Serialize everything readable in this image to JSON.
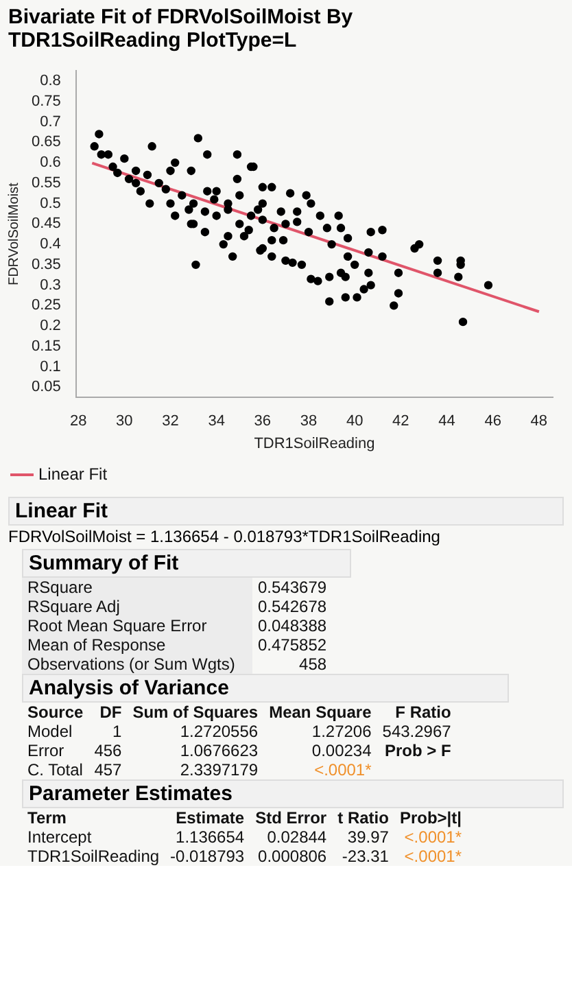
{
  "chart_data": {
    "type": "scatter",
    "title": "Bivariate Fit of FDRVolSoilMoist By TDR1SoilReading PlotType=L",
    "xlabel": "TDR1SoilReading",
    "ylabel": "FDRVolSoilMoist",
    "legend": "bottom left",
    "xlim": [
      27.9,
      48.6
    ],
    "xticks": [
      28,
      30,
      32,
      34,
      36,
      38,
      40,
      42,
      44,
      46,
      48
    ],
    "ylim": [
      0.025,
      0.825
    ],
    "yticks": [
      0.05,
      0.1,
      0.15,
      0.2,
      0.25,
      0.3,
      0.35,
      0.4,
      0.45,
      0.5,
      0.55,
      0.6,
      0.65,
      0.7,
      0.75,
      0.8
    ],
    "series": [
      {
        "marker": "circle",
        "color": "#000000",
        "x": [
          28.9,
          28.7,
          29.0,
          29.3,
          30.0,
          29.5,
          29.7,
          30.2,
          31.2,
          30.5,
          31.0,
          30.7,
          31.1,
          33.1,
          33.2,
          33.6,
          34.9,
          35.5,
          32.0,
          32.2,
          32.9,
          31.8,
          32.2,
          32.9,
          34.3,
          33.9,
          34.9,
          36.0,
          35.8,
          35.4,
          35.9,
          36.4,
          37.2,
          37.3,
          36.4,
          34.7,
          33.6,
          34.5,
          32.8,
          35.6,
          36.4,
          37.9,
          38.1,
          37.5,
          36.9,
          36.0,
          37.0,
          37.7,
          38.1,
          38.4,
          38.9,
          38.9,
          39.3,
          39.4,
          38.8,
          39.7,
          39.0,
          39.7,
          40.0,
          39.4,
          39.6,
          39.6,
          40.1,
          40.4,
          40.7,
          40.6,
          40.6,
          40.7,
          41.2,
          41.2,
          41.9,
          41.9,
          41.7,
          42.6,
          42.8,
          43.6,
          43.6,
          44.6,
          44.6,
          44.5,
          44.7,
          45.8,
          33.0,
          33.5,
          34.0,
          34.5,
          35.0,
          35.5,
          34.0,
          33.0,
          35.0,
          36.0,
          36.5,
          32.5,
          31.5,
          30.5,
          32.0,
          33.5,
          34.5,
          35.2,
          36.8,
          37.5,
          38.5,
          38.0,
          36.0,
          37.0
        ],
        "values": [
          0.67,
          0.64,
          0.62,
          0.62,
          0.61,
          0.59,
          0.575,
          0.56,
          0.64,
          0.58,
          0.57,
          0.53,
          0.5,
          0.35,
          0.66,
          0.62,
          0.62,
          0.59,
          0.58,
          0.6,
          0.58,
          0.535,
          0.47,
          0.45,
          0.4,
          0.51,
          0.56,
          0.54,
          0.485,
          0.435,
          0.385,
          0.41,
          0.525,
          0.355,
          0.37,
          0.37,
          0.53,
          0.485,
          0.485,
          0.59,
          0.54,
          0.52,
          0.5,
          0.455,
          0.41,
          0.39,
          0.36,
          0.35,
          0.315,
          0.31,
          0.26,
          0.32,
          0.47,
          0.44,
          0.44,
          0.415,
          0.4,
          0.37,
          0.35,
          0.33,
          0.32,
          0.27,
          0.27,
          0.29,
          0.3,
          0.33,
          0.38,
          0.43,
          0.435,
          0.37,
          0.33,
          0.28,
          0.25,
          0.39,
          0.4,
          0.36,
          0.33,
          0.36,
          0.35,
          0.32,
          0.21,
          0.3,
          0.5,
          0.48,
          0.47,
          0.5,
          0.45,
          0.47,
          0.53,
          0.45,
          0.52,
          0.46,
          0.44,
          0.52,
          0.55,
          0.55,
          0.5,
          0.43,
          0.42,
          0.42,
          0.48,
          0.48,
          0.47,
          0.43,
          0.5,
          0.45
        ]
      },
      {
        "type": "line",
        "marker": "none",
        "name": "Linear Fit",
        "color": "#e0556a",
        "x": [
          28.6,
          48
        ],
        "values": [
          0.599,
          0.235
        ]
      }
    ],
    "annotations": [
      "Linear Fit",
      "FDRVolSoilMoist = 1.136654 - 0.018793*TDR1SoilReading",
      "Summary of Fit",
      "RSquare",
      "0.543679",
      "RSquare Adj",
      "0.542678",
      "Root Mean Square Error",
      "0.048388",
      "Mean of Response",
      "0.475852",
      "Observations (or Sum Wgts)",
      "458",
      "Analysis of Variance",
      "Source",
      "DF",
      "Sum of Squares",
      "Mean Square",
      "F Ratio",
      "Model",
      "1",
      "1.2720556",
      "1.27206",
      "543.2967",
      "Error",
      "456",
      "1.0676623",
      "0.00234",
      "Prob > F",
      "C. Total",
      "457",
      "2.3397179",
      "<.0001*",
      "Parameter Estimates",
      "Term",
      "Estimate",
      "Std Error",
      "t Ratio",
      "Prob>|t|",
      "Intercept",
      "1.136654",
      "0.02844",
      "39.97",
      "<.0001*",
      "TDR1SoilReading",
      "-0.018793",
      "0.000806",
      "-23.31",
      "<.0001*"
    ]
  }
}
